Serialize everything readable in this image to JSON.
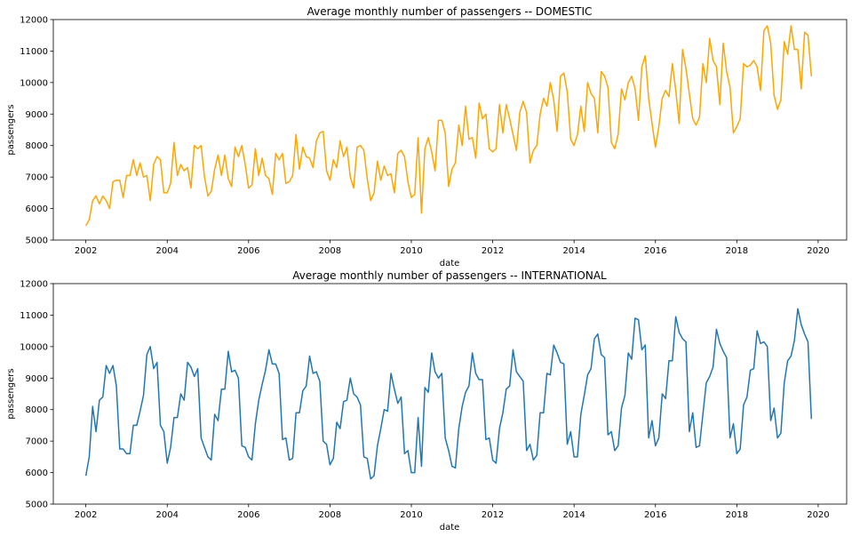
{
  "chart_data": [
    {
      "type": "line",
      "title": "Average monthly number of passengers -- DOMESTIC",
      "xlabel": "date",
      "ylabel": "passengers",
      "xlim": [
        2001.2,
        2020.7
      ],
      "ylim": [
        5000,
        12000
      ],
      "xticks": [
        2002,
        2004,
        2006,
        2008,
        2010,
        2012,
        2014,
        2016,
        2018,
        2020
      ],
      "yticks": [
        5000,
        6000,
        7000,
        8000,
        9000,
        10000,
        11000,
        12000
      ],
      "grid": false,
      "color": "#ffa500",
      "x_start": 2002,
      "x_step": 0.08333,
      "values": [
        5450,
        5650,
        6250,
        6400,
        6150,
        6400,
        6250,
        6000,
        6850,
        6900,
        6900,
        6350,
        7050,
        7050,
        7550,
        7050,
        7450,
        7000,
        7050,
        6250,
        7400,
        7650,
        7550,
        6500,
        6500,
        6800,
        8100,
        7050,
        7400,
        7200,
        7300,
        6650,
        8000,
        7900,
        8000,
        7000,
        6400,
        6550,
        7250,
        7700,
        7050,
        7700,
        6950,
        6700,
        7950,
        7650,
        8000,
        7400,
        6650,
        6750,
        7900,
        7050,
        7600,
        7050,
        6950,
        6450,
        7750,
        7550,
        7750,
        6800,
        6850,
        7050,
        8350,
        7250,
        7950,
        7650,
        7600,
        7300,
        8150,
        8400,
        8450,
        7200,
        6900,
        7550,
        7300,
        8150,
        7650,
        7950,
        7000,
        6650,
        7950,
        8000,
        7850,
        6950,
        6250,
        6500,
        7500,
        6900,
        7350,
        7050,
        7100,
        6500,
        7750,
        7850,
        7650,
        6850,
        6350,
        6450,
        8250,
        5850,
        7900,
        8250,
        7800,
        7200,
        8800,
        8800,
        8400,
        6700,
        7250,
        7450,
        8650,
        8000,
        9250,
        8200,
        8250,
        7600,
        9350,
        8850,
        9000,
        7900,
        7800,
        7900,
        9300,
        8400,
        9300,
        8850,
        8350,
        7850,
        9050,
        9400,
        9050,
        7450,
        7850,
        8000,
        9000,
        9500,
        9250,
        10000,
        9450,
        8450,
        10200,
        10300,
        9700,
        8200,
        8000,
        8350,
        9250,
        8450,
        10000,
        9650,
        9500,
        8400,
        10350,
        10200,
        9850,
        8100,
        7900,
        8350,
        9800,
        9450,
        10000,
        10200,
        9800,
        8800,
        10500,
        10850,
        9500,
        8700,
        7950,
        8600,
        9500,
        9750,
        9550,
        10600,
        9750,
        8700,
        11050,
        10450,
        9650,
        8850,
        8650,
        8900,
        10600,
        10000,
        11400,
        10700,
        10500,
        9300,
        11250,
        10350,
        9850,
        8400,
        8600,
        8850,
        10600,
        10500,
        10550,
        10700,
        10500,
        9750,
        11650,
        11800,
        11250,
        9600,
        9150,
        9450,
        11300,
        10900,
        11800,
        11050,
        11050,
        9800,
        11600,
        11500,
        10200
      ]
    },
    {
      "type": "line",
      "title": "Average monthly number of passengers -- INTERNATIONAL",
      "xlabel": "date",
      "ylabel": "passengers",
      "xlim": [
        2001.2,
        2020.7
      ],
      "ylim": [
        5000,
        12000
      ],
      "xticks": [
        2002,
        2004,
        2006,
        2008,
        2010,
        2012,
        2014,
        2016,
        2018,
        2020
      ],
      "yticks": [
        5000,
        6000,
        7000,
        8000,
        9000,
        10000,
        11000,
        12000
      ],
      "grid": false,
      "color": "#1f77b4",
      "x_start": 2002,
      "x_step": 0.08333,
      "values": [
        5900,
        6500,
        8100,
        7300,
        8300,
        8400,
        9400,
        9150,
        9400,
        8750,
        6750,
        6750,
        6600,
        6600,
        7500,
        7500,
        7950,
        8450,
        9750,
        10000,
        9300,
        9500,
        7500,
        7300,
        6300,
        6800,
        7750,
        7750,
        8500,
        8300,
        9500,
        9350,
        9050,
        9300,
        7100,
        6800,
        6500,
        6400,
        7850,
        7650,
        8650,
        8650,
        9850,
        9200,
        9250,
        9000,
        6850,
        6800,
        6500,
        6400,
        7550,
        8300,
        8800,
        9250,
        9900,
        9450,
        9450,
        9150,
        7050,
        7100,
        6400,
        6450,
        7900,
        7900,
        8600,
        8750,
        9700,
        9150,
        9200,
        8900,
        7000,
        6900,
        6250,
        6450,
        7600,
        7400,
        8250,
        8300,
        9000,
        8500,
        8400,
        8150,
        6500,
        6450,
        5800,
        5900,
        6850,
        7400,
        8000,
        7950,
        9150,
        8650,
        8200,
        8400,
        6600,
        6700,
        6000,
        6000,
        7750,
        6200,
        8700,
        8550,
        9800,
        9200,
        9000,
        9150,
        7100,
        6700,
        6200,
        6150,
        7400,
        8100,
        8550,
        8750,
        9800,
        9150,
        8950,
        8950,
        7050,
        7100,
        6400,
        6300,
        7400,
        7900,
        8650,
        8750,
        9900,
        9200,
        9050,
        8900,
        6700,
        6900,
        6400,
        6550,
        7900,
        7900,
        9150,
        9100,
        10050,
        9800,
        9500,
        9450,
        6900,
        7300,
        6500,
        6500,
        7850,
        8450,
        9100,
        9300,
        10250,
        10400,
        9750,
        9650,
        7200,
        7300,
        6700,
        6850,
        8050,
        8450,
        9800,
        9600,
        10900,
        10850,
        9900,
        10050,
        7100,
        7650,
        6850,
        7100,
        8500,
        8350,
        9550,
        9550,
        10950,
        10450,
        10250,
        10150,
        7300,
        7900,
        6800,
        6850,
        7850,
        8850,
        9050,
        9350,
        10550,
        10100,
        9850,
        9650,
        7100,
        7550,
        6600,
        6750,
        8150,
        8400,
        9250,
        9300,
        10500,
        10100,
        10150,
        10000,
        7650,
        8050,
        7100,
        7250,
        8850,
        9550,
        9700,
        10200,
        11200,
        10700,
        10400,
        10150,
        7700
      ]
    }
  ]
}
